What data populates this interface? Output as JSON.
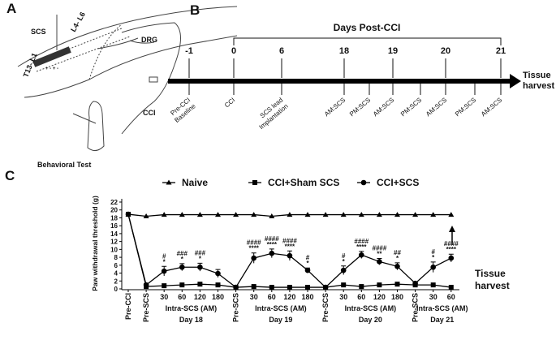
{
  "panel_a": {
    "label": "A",
    "scs": "SCS",
    "spine_upper": "T13- L1",
    "spine_lower": "L4- L6",
    "drg": "DRG",
    "cci": "CCI",
    "behavior": "Behavioral Test",
    "polarity": "+ - + -"
  },
  "panel_b": {
    "label": "B",
    "header": "Days Post-CCI",
    "days": [
      "-1",
      "0",
      "6",
      "18",
      "19",
      "20",
      "21"
    ],
    "events": [
      [
        "Pre-CCI",
        "Baseline"
      ],
      [
        "CCI"
      ],
      [
        "SCS lead",
        "Implantation"
      ],
      [
        "AM:SCS"
      ],
      [
        "PM:SCS"
      ],
      [
        "AM:SCS"
      ],
      [
        "PM:SCS"
      ],
      [
        "AM:SCS"
      ],
      [
        "PM:SCS"
      ],
      [
        "AM:SCS"
      ]
    ],
    "end_label": [
      "Tissue",
      "harvest"
    ]
  },
  "chart_data": {
    "type": "line",
    "panel_label": "C",
    "ylabel": "Paw withdrawal threshold (g)",
    "categories": [
      "Pre-CCI",
      "Pre-SCS",
      "30",
      "60",
      "120",
      "180",
      "Pre-SCS",
      "30",
      "60",
      "120",
      "180",
      "Pre-SCS",
      "30",
      "60",
      "120",
      "180",
      "Pre-SCS",
      "30",
      "60"
    ],
    "x_group_labels": [
      "Intra-SCS (AM)",
      "Intra-SCS (AM)",
      "Intra-SCS (AM)",
      "Intra-SCS (AM)"
    ],
    "x_group_days": [
      "Day 18",
      "Day 19",
      "Day 20",
      "Day 21"
    ],
    "ylim": [
      0,
      22
    ],
    "yticks": [
      0,
      2,
      4,
      6,
      8,
      10,
      12,
      14,
      16,
      18,
      20,
      22
    ],
    "series": [
      {
        "name": "Naive",
        "color": "#000000",
        "marker": "triangle",
        "values": [
          18.9,
          18.4,
          18.8,
          18.8,
          18.8,
          18.8,
          18.8,
          18.8,
          18.4,
          18.8,
          18.8,
          18.8,
          18.8,
          18.8,
          18.8,
          18.8,
          18.8,
          18.8,
          18.8
        ]
      },
      {
        "name": "CCI+Sham SCS",
        "color": "#000000",
        "marker": "square",
        "values": [
          18.9,
          0.6,
          0.8,
          1.0,
          1.2,
          1.0,
          0.4,
          0.6,
          0.4,
          0.4,
          0.4,
          0.4,
          1.0,
          0.6,
          1.0,
          1.2,
          1.0,
          1.0,
          0.4
        ]
      },
      {
        "name": "CCI+SCS",
        "color": "#000000",
        "marker": "circle",
        "values": [
          18.9,
          1.0,
          4.5,
          5.5,
          5.5,
          3.9,
          0.4,
          7.8,
          9.0,
          8.4,
          4.7,
          0.4,
          4.7,
          8.6,
          6.9,
          5.7,
          1.4,
          5.5,
          7.8
        ],
        "errors": [
          0.2,
          0.3,
          1.2,
          0.9,
          1.0,
          1.0,
          0.2,
          1.3,
          1.1,
          1.2,
          0.6,
          0.2,
          1.1,
          0.9,
          0.8,
          0.9,
          0.3,
          1.3,
          1.0
        ]
      }
    ],
    "significance": [
      null,
      null,
      [
        "#",
        "*"
      ],
      [
        "###",
        "*"
      ],
      [
        "###",
        "*"
      ],
      null,
      null,
      [
        "####",
        "****"
      ],
      [
        "####",
        "****"
      ],
      [
        "####",
        "****"
      ],
      [
        "#",
        "*"
      ],
      null,
      [
        "#",
        "*"
      ],
      [
        "####",
        "****"
      ],
      [
        "####",
        "**"
      ],
      [
        "##",
        "*"
      ],
      null,
      [
        "#",
        "*"
      ],
      [
        "####",
        "****"
      ]
    ],
    "annotation": [
      "Tissue",
      "harvest"
    ]
  }
}
